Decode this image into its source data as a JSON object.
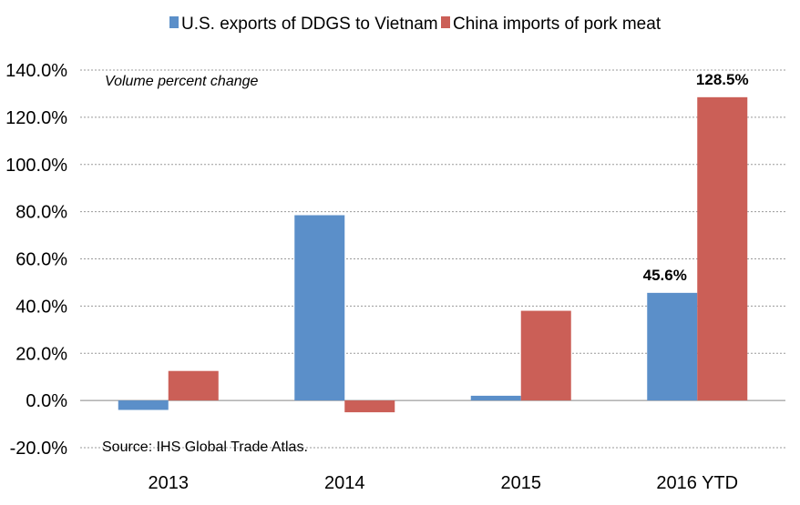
{
  "chart_data": {
    "type": "bar",
    "subtitle": "Volume percent change",
    "source": "Source: IHS Global Trade Atlas.",
    "categories": [
      "2013",
      "2014",
      "2015",
      "2016 YTD"
    ],
    "series": [
      {
        "name": "U.S. exports of DDGS to Vietnam",
        "color": "#5B8FC9",
        "values": [
          -4.0,
          78.5,
          2.0,
          45.6
        ]
      },
      {
        "name": "China imports of pork meat",
        "color": "#CB5F57",
        "values": [
          12.5,
          -5.0,
          38.0,
          128.5
        ]
      }
    ],
    "data_labels": [
      {
        "series": 0,
        "index": 3,
        "text": "45.6%"
      },
      {
        "series": 1,
        "index": 3,
        "text": "128.5%"
      }
    ],
    "yticks": [
      "140.0%",
      "120.0%",
      "100.0%",
      "80.0%",
      "60.0%",
      "40.0%",
      "20.0%",
      "0.0%",
      "-20.0%"
    ],
    "ylim": [
      -20,
      140
    ],
    "grid": true,
    "legend": "top"
  }
}
